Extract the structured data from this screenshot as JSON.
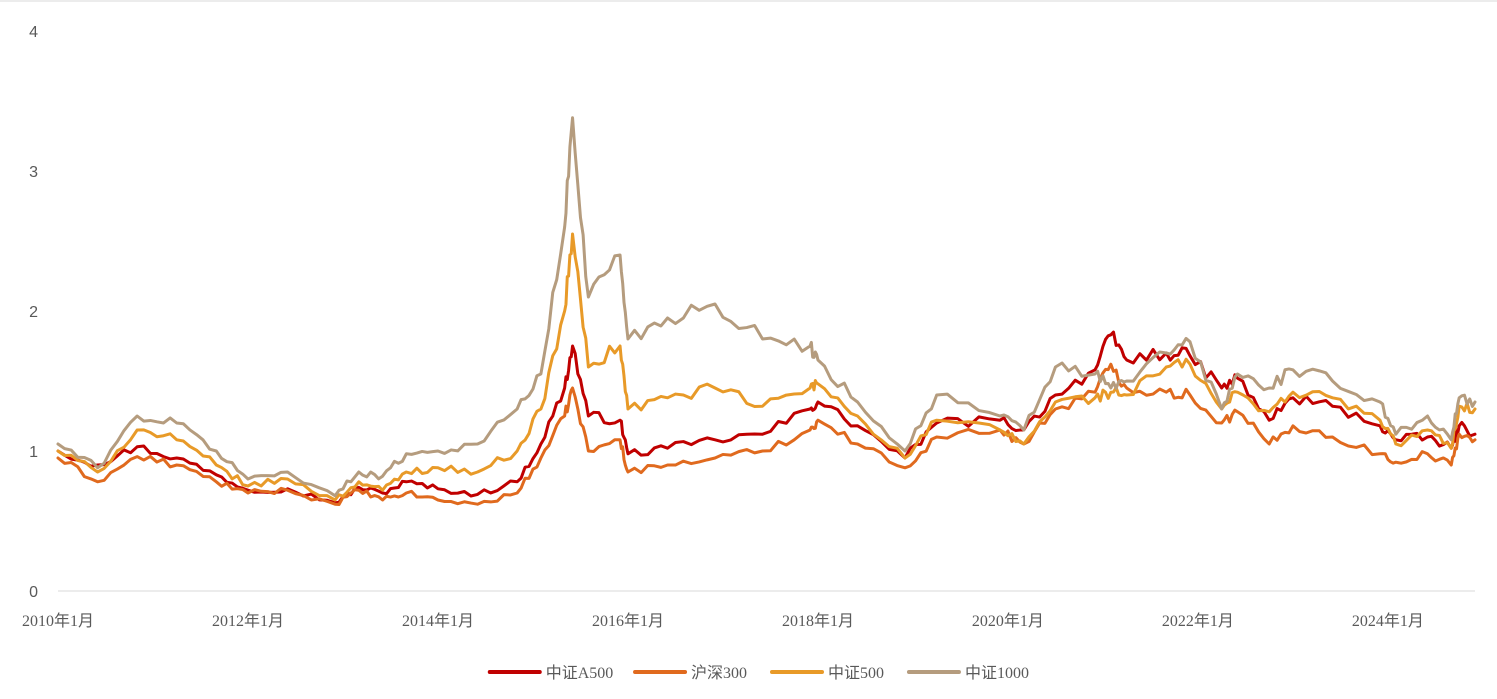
{
  "chart_data": {
    "type": "line",
    "title": "",
    "xlabel": "",
    "ylabel": "",
    "x_range": [
      "2010-01",
      "2024-12"
    ],
    "ylim": [
      0,
      4
    ],
    "y_ticks": [
      "0",
      "1",
      "2",
      "3",
      "4"
    ],
    "x_ticks": [
      {
        "date": "2010-01",
        "label": "2010年1月"
      },
      {
        "date": "2012-01",
        "label": "2012年1月"
      },
      {
        "date": "2014-01",
        "label": "2014年1月"
      },
      {
        "date": "2016-01",
        "label": "2016年1月"
      },
      {
        "date": "2018-01",
        "label": "2018年1月"
      },
      {
        "date": "2020-01",
        "label": "2020年1月"
      },
      {
        "date": "2022-01",
        "label": "2022年1月"
      },
      {
        "date": "2024-01",
        "label": "2024年1月"
      }
    ],
    "grid": "none",
    "legend_position": "bottom",
    "series": [
      {
        "name": "中证A500",
        "color": "#c00000",
        "points": [
          [
            "2010-01",
            1.0
          ],
          [
            "2010-06",
            0.9
          ],
          [
            "2010-11",
            1.03
          ],
          [
            "2011-04",
            0.95
          ],
          [
            "2011-09",
            0.83
          ],
          [
            "2012-01",
            0.72
          ],
          [
            "2012-06",
            0.73
          ],
          [
            "2012-12",
            0.63
          ],
          [
            "2013-03",
            0.74
          ],
          [
            "2013-06",
            0.7
          ],
          [
            "2013-09",
            0.78
          ],
          [
            "2014-01",
            0.73
          ],
          [
            "2014-06",
            0.69
          ],
          [
            "2014-11",
            0.78
          ],
          [
            "2015-02",
            1.05
          ],
          [
            "2015-05",
            1.45
          ],
          [
            "2015-06",
            1.75
          ],
          [
            "2015-08",
            1.25
          ],
          [
            "2015-12",
            1.22
          ],
          [
            "2016-01",
            0.98
          ],
          [
            "2016-06",
            1.02
          ],
          [
            "2016-12",
            1.08
          ],
          [
            "2017-06",
            1.12
          ],
          [
            "2017-12",
            1.3
          ],
          [
            "2018-01",
            1.35
          ],
          [
            "2018-06",
            1.18
          ],
          [
            "2018-12",
            0.95
          ],
          [
            "2019-04",
            1.2
          ],
          [
            "2019-12",
            1.22
          ],
          [
            "2020-03",
            1.15
          ],
          [
            "2020-07",
            1.4
          ],
          [
            "2020-12",
            1.58
          ],
          [
            "2021-02",
            1.83
          ],
          [
            "2021-04",
            1.65
          ],
          [
            "2021-09",
            1.7
          ],
          [
            "2021-12",
            1.68
          ],
          [
            "2022-04",
            1.45
          ],
          [
            "2022-06",
            1.52
          ],
          [
            "2022-10",
            1.22
          ],
          [
            "2023-01",
            1.38
          ],
          [
            "2023-06",
            1.32
          ],
          [
            "2023-12",
            1.18
          ],
          [
            "2024-02",
            1.08
          ],
          [
            "2024-06",
            1.1
          ],
          [
            "2024-09",
            1.02
          ],
          [
            "2024-10",
            1.18
          ],
          [
            "2024-12",
            1.12
          ]
        ]
      },
      {
        "name": "沪深300",
        "color": "#e06a1e",
        "points": [
          [
            "2010-01",
            0.95
          ],
          [
            "2010-06",
            0.78
          ],
          [
            "2010-11",
            0.96
          ],
          [
            "2011-04",
            0.9
          ],
          [
            "2011-09",
            0.78
          ],
          [
            "2012-01",
            0.7
          ],
          [
            "2012-06",
            0.72
          ],
          [
            "2012-12",
            0.62
          ],
          [
            "2013-03",
            0.72
          ],
          [
            "2013-06",
            0.65
          ],
          [
            "2013-09",
            0.7
          ],
          [
            "2014-01",
            0.65
          ],
          [
            "2014-06",
            0.62
          ],
          [
            "2014-11",
            0.7
          ],
          [
            "2015-02",
            0.95
          ],
          [
            "2015-05",
            1.25
          ],
          [
            "2015-06",
            1.45
          ],
          [
            "2015-08",
            1.0
          ],
          [
            "2015-12",
            1.08
          ],
          [
            "2016-01",
            0.85
          ],
          [
            "2016-06",
            0.9
          ],
          [
            "2016-12",
            0.95
          ],
          [
            "2017-06",
            1.0
          ],
          [
            "2017-12",
            1.15
          ],
          [
            "2018-01",
            1.22
          ],
          [
            "2018-06",
            1.05
          ],
          [
            "2018-12",
            0.88
          ],
          [
            "2019-04",
            1.1
          ],
          [
            "2019-12",
            1.15
          ],
          [
            "2020-03",
            1.05
          ],
          [
            "2020-07",
            1.3
          ],
          [
            "2020-12",
            1.42
          ],
          [
            "2021-02",
            1.62
          ],
          [
            "2021-04",
            1.45
          ],
          [
            "2021-09",
            1.42
          ],
          [
            "2021-12",
            1.4
          ],
          [
            "2022-04",
            1.2
          ],
          [
            "2022-06",
            1.28
          ],
          [
            "2022-10",
            1.05
          ],
          [
            "2023-01",
            1.18
          ],
          [
            "2023-06",
            1.1
          ],
          [
            "2023-12",
            0.98
          ],
          [
            "2024-02",
            0.92
          ],
          [
            "2024-06",
            0.98
          ],
          [
            "2024-09",
            0.9
          ],
          [
            "2024-10",
            1.12
          ],
          [
            "2024-12",
            1.08
          ]
        ]
      },
      {
        "name": "中证500",
        "color": "#e89a28",
        "points": [
          [
            "2010-01",
            1.0
          ],
          [
            "2010-06",
            0.85
          ],
          [
            "2010-11",
            1.15
          ],
          [
            "2011-04",
            1.08
          ],
          [
            "2011-09",
            0.9
          ],
          [
            "2012-01",
            0.75
          ],
          [
            "2012-06",
            0.8
          ],
          [
            "2012-12",
            0.65
          ],
          [
            "2013-03",
            0.78
          ],
          [
            "2013-06",
            0.72
          ],
          [
            "2013-09",
            0.85
          ],
          [
            "2014-01",
            0.88
          ],
          [
            "2014-06",
            0.85
          ],
          [
            "2014-11",
            1.0
          ],
          [
            "2015-02",
            1.3
          ],
          [
            "2015-05",
            2.0
          ],
          [
            "2015-06",
            2.55
          ],
          [
            "2015-08",
            1.6
          ],
          [
            "2015-12",
            1.75
          ],
          [
            "2016-01",
            1.3
          ],
          [
            "2016-06",
            1.38
          ],
          [
            "2016-12",
            1.45
          ],
          [
            "2017-06",
            1.32
          ],
          [
            "2017-12",
            1.45
          ],
          [
            "2018-01",
            1.48
          ],
          [
            "2018-06",
            1.25
          ],
          [
            "2018-12",
            0.95
          ],
          [
            "2019-04",
            1.22
          ],
          [
            "2019-12",
            1.15
          ],
          [
            "2020-03",
            1.05
          ],
          [
            "2020-07",
            1.35
          ],
          [
            "2020-12",
            1.38
          ],
          [
            "2021-02",
            1.42
          ],
          [
            "2021-04",
            1.4
          ],
          [
            "2021-09",
            1.6
          ],
          [
            "2021-12",
            1.62
          ],
          [
            "2022-04",
            1.3
          ],
          [
            "2022-06",
            1.42
          ],
          [
            "2022-10",
            1.28
          ],
          [
            "2023-01",
            1.42
          ],
          [
            "2023-06",
            1.38
          ],
          [
            "2023-12",
            1.22
          ],
          [
            "2024-02",
            1.05
          ],
          [
            "2024-06",
            1.15
          ],
          [
            "2024-09",
            1.02
          ],
          [
            "2024-10",
            1.32
          ],
          [
            "2024-12",
            1.3
          ]
        ]
      },
      {
        "name": "中证1000",
        "color": "#b59c7e",
        "points": [
          [
            "2010-01",
            1.05
          ],
          [
            "2010-06",
            0.88
          ],
          [
            "2010-11",
            1.25
          ],
          [
            "2011-04",
            1.2
          ],
          [
            "2011-09",
            1.0
          ],
          [
            "2012-01",
            0.8
          ],
          [
            "2012-06",
            0.85
          ],
          [
            "2012-12",
            0.68
          ],
          [
            "2013-03",
            0.85
          ],
          [
            "2013-06",
            0.82
          ],
          [
            "2013-09",
            0.98
          ],
          [
            "2014-01",
            1.0
          ],
          [
            "2014-06",
            1.05
          ],
          [
            "2014-11",
            1.3
          ],
          [
            "2015-02",
            1.55
          ],
          [
            "2015-05",
            2.6
          ],
          [
            "2015-06",
            3.38
          ],
          [
            "2015-08",
            2.1
          ],
          [
            "2015-12",
            2.4
          ],
          [
            "2016-01",
            1.8
          ],
          [
            "2016-06",
            1.95
          ],
          [
            "2016-12",
            2.05
          ],
          [
            "2017-06",
            1.8
          ],
          [
            "2017-12",
            1.75
          ],
          [
            "2018-01",
            1.65
          ],
          [
            "2018-06",
            1.35
          ],
          [
            "2018-12",
            1.0
          ],
          [
            "2019-04",
            1.4
          ],
          [
            "2019-12",
            1.25
          ],
          [
            "2020-03",
            1.15
          ],
          [
            "2020-07",
            1.6
          ],
          [
            "2020-12",
            1.55
          ],
          [
            "2021-02",
            1.45
          ],
          [
            "2021-04",
            1.5
          ],
          [
            "2021-09",
            1.7
          ],
          [
            "2021-12",
            1.78
          ],
          [
            "2022-04",
            1.3
          ],
          [
            "2022-06",
            1.55
          ],
          [
            "2022-10",
            1.45
          ],
          [
            "2023-01",
            1.58
          ],
          [
            "2023-06",
            1.5
          ],
          [
            "2023-12",
            1.35
          ],
          [
            "2024-02",
            1.12
          ],
          [
            "2024-06",
            1.25
          ],
          [
            "2024-09",
            1.08
          ],
          [
            "2024-10",
            1.38
          ],
          [
            "2024-12",
            1.35
          ]
        ]
      }
    ]
  }
}
